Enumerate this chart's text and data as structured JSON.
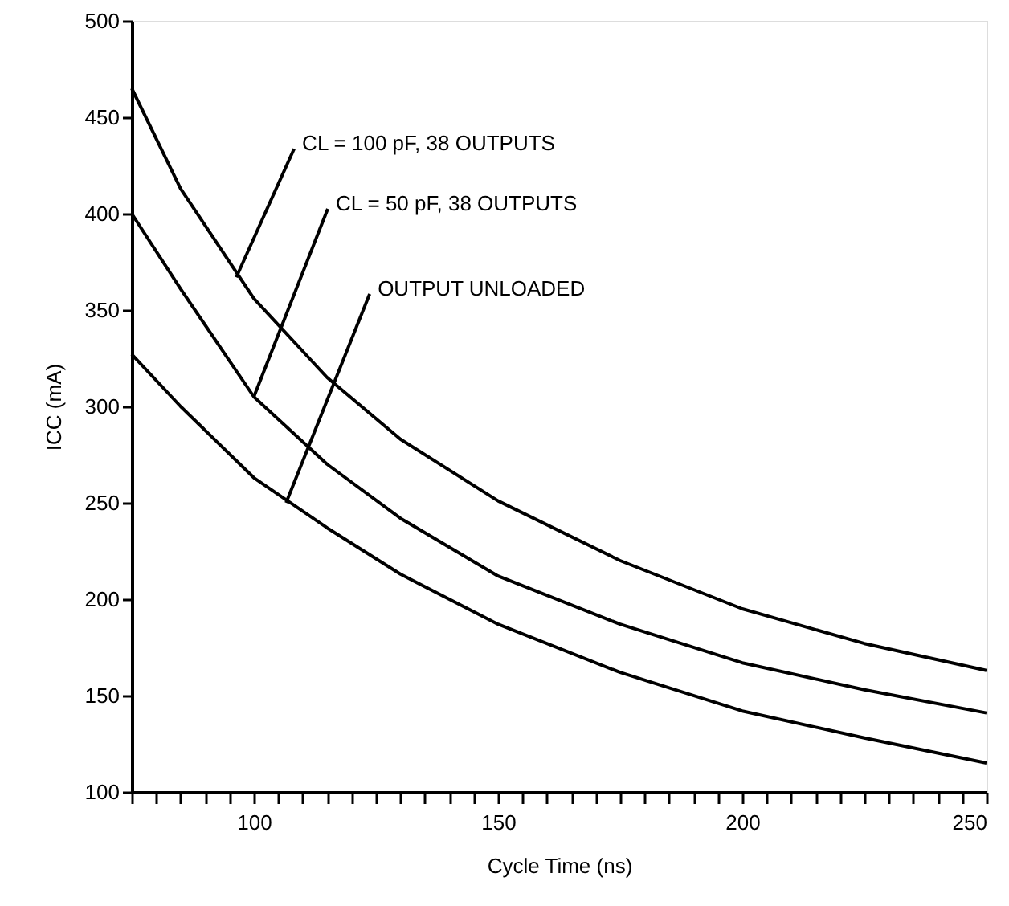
{
  "chart_data": {
    "type": "line",
    "xlabel": "Cycle Time (ns)",
    "ylabel": "ICC (mA)",
    "x": [
      75,
      85,
      100,
      115,
      130,
      150,
      175,
      200,
      225,
      250
    ],
    "series": [
      {
        "color": "#000000",
        "values": [
          465,
          413,
          356,
          315,
          283,
          251,
          220,
          195,
          177,
          163
        ]
      },
      {
        "color": "#000000",
        "values": [
          400,
          361,
          305,
          270,
          242,
          212,
          187,
          167,
          153,
          141
        ]
      },
      {
        "color": "#000000",
        "values": [
          327,
          300,
          263,
          237,
          213,
          187,
          162,
          142,
          128,
          115
        ]
      }
    ],
    "annotations": [
      {
        "text": "CL = 100 pF, 38 OUTPUTS",
        "x": 96.4,
        "y": 367
      },
      {
        "text": "CL = 50 pF, 38 OUTPUTS",
        "x": 100,
        "y": 305
      },
      {
        "text": "OUTPUT UNLOADED",
        "x": 106.6,
        "y": 250
      }
    ],
    "xlim": [
      75,
      250
    ],
    "xticks": [
      {
        "value": 75,
        "label": null
      },
      {
        "value": 80,
        "label": null
      },
      {
        "value": 85,
        "label": null
      },
      {
        "value": 90,
        "label": null
      },
      {
        "value": 95,
        "label": null
      },
      100,
      {
        "value": 105,
        "label": null
      },
      {
        "value": 110,
        "label": null
      },
      {
        "value": 115,
        "label": null
      },
      {
        "value": 120,
        "label": null
      },
      {
        "value": 125,
        "label": null
      },
      {
        "value": 130,
        "label": null
      },
      {
        "value": 135,
        "label": null
      },
      {
        "value": 140,
        "label": null
      },
      {
        "value": 145,
        "label": null
      },
      150,
      {
        "value": 155,
        "label": null
      },
      {
        "value": 160,
        "label": null
      },
      {
        "value": 165,
        "label": null
      },
      {
        "value": 170,
        "label": null
      },
      {
        "value": 175,
        "label": null
      },
      {
        "value": 180,
        "label": null
      },
      {
        "value": 185,
        "label": null
      },
      {
        "value": 190,
        "label": null
      },
      {
        "value": 195,
        "label": null
      },
      200,
      {
        "value": 205,
        "label": null
      },
      {
        "value": 210,
        "label": null
      },
      {
        "value": 215,
        "label": null
      },
      {
        "value": 220,
        "label": null
      },
      {
        "value": 225,
        "label": null
      },
      {
        "value": 230,
        "label": null
      },
      {
        "value": 235,
        "label": null
      },
      {
        "value": 240,
        "label": null
      },
      {
        "value": 245,
        "label": null
      },
      250
    ],
    "ylim": [
      100,
      500
    ],
    "yticks": [
      100,
      150,
      200,
      250,
      300,
      350,
      400,
      450,
      500
    ],
    "grid": false,
    "marker": "none",
    "line_style": "solid"
  }
}
